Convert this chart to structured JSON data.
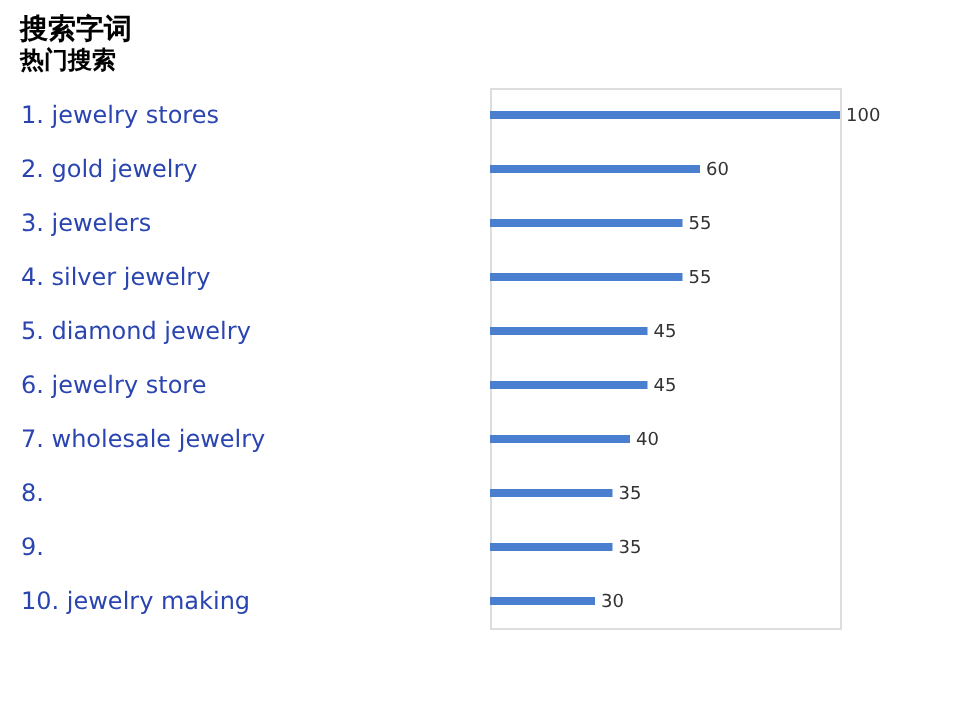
{
  "chart_data": {
    "type": "bar",
    "orientation": "horizontal",
    "title": "搜索字词",
    "subtitle": "热门搜索",
    "categories": [
      "1. jewelry stores",
      "2. gold jewelry",
      "3. jewelers",
      "4. silver jewelry",
      "5. diamond jewelry",
      "6. jewelry store",
      "7. wholesale jewelry",
      "8.",
      "9.",
      "10. jewelry making"
    ],
    "values": [
      100,
      60,
      55,
      55,
      45,
      45,
      40,
      35,
      35,
      30
    ],
    "color": "#4a7fd0",
    "data_labels": true,
    "grid": false
  }
}
